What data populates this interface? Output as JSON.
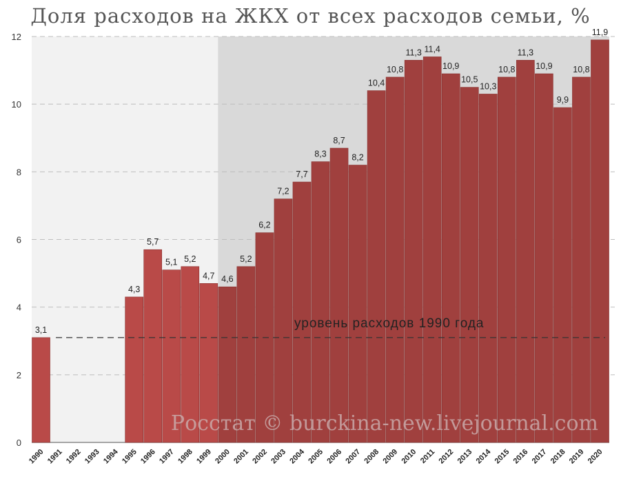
{
  "chart_data": {
    "type": "bar",
    "title": "Доля расходов на ЖКХ от всех расходов семьи, %",
    "categories": [
      "1990",
      "1991",
      "1992",
      "1993",
      "1994",
      "1995",
      "1996",
      "1997",
      "1998",
      "1999",
      "2000",
      "2001",
      "2002",
      "2003",
      "2004",
      "2005",
      "2006",
      "2007",
      "2008",
      "2009",
      "2010",
      "2011",
      "2012",
      "2013",
      "2014",
      "2015",
      "2016",
      "2017",
      "2018",
      "2019",
      "2020"
    ],
    "values": [
      3.1,
      null,
      null,
      null,
      null,
      4.3,
      5.7,
      5.1,
      5.2,
      4.7,
      4.6,
      5.2,
      6.2,
      7.2,
      7.7,
      8.3,
      8.7,
      8.2,
      10.4,
      10.8,
      11.3,
      11.4,
      10.9,
      10.5,
      10.3,
      10.8,
      11.3,
      10.9,
      9.9,
      10.8,
      11.9
    ],
    "value_labels": [
      "3,1",
      "",
      "",
      "",
      "",
      "4,3",
      "5,7",
      "5,1",
      "5,2",
      "4,7",
      "4,6",
      "5,2",
      "6,2",
      "7,2",
      "7,7",
      "8,3",
      "8,7",
      "8,2",
      "10,4",
      "10,8",
      "11,3",
      "11,4",
      "10,9",
      "10,5",
      "10,3",
      "10,8",
      "11,3",
      "10,9",
      "9,9",
      "10,8",
      "11,9"
    ],
    "y_ticks": [
      "0",
      "2",
      "4",
      "6",
      "8",
      "10",
      "12"
    ],
    "ylim": [
      0,
      12
    ],
    "grid": true,
    "reference_line": {
      "value": 3.1,
      "label": "уровень расходов 1990 года",
      "style": "dashed"
    },
    "background_shading": [
      {
        "from": "1990",
        "to": "1999",
        "color": "#f2f2f2"
      },
      {
        "from": "2000",
        "to": "2020",
        "color": "#d9d9d9"
      }
    ],
    "colors": {
      "bars_1990s": "#b94a48",
      "bars_2000s": "#a0403e",
      "title": "#555555"
    },
    "watermark": "Росстат © burckina-new.livejournal.com"
  }
}
